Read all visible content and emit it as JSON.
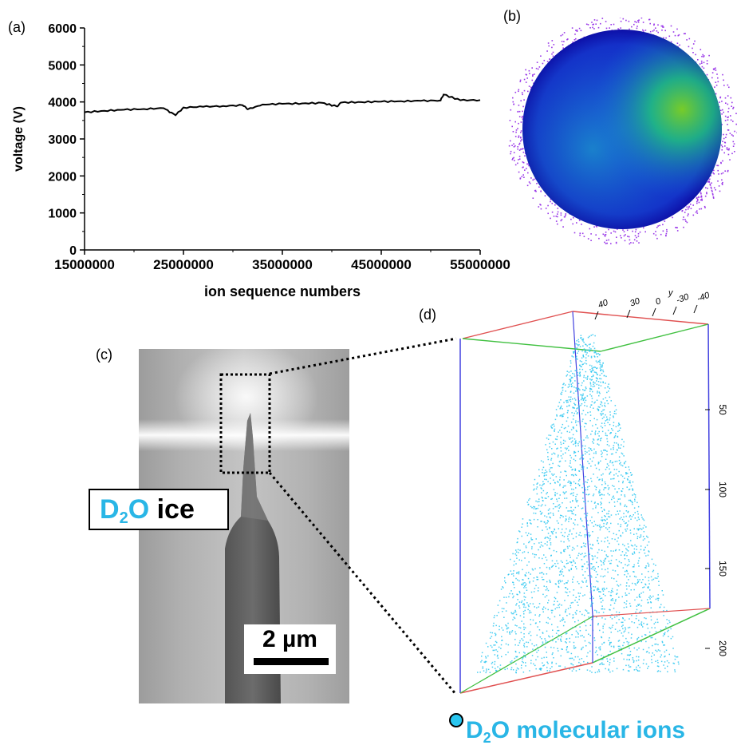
{
  "panels": {
    "a": "(a)",
    "b": "(b)",
    "c": "(c)",
    "d": "(d)"
  },
  "chart_data": {
    "type": "line",
    "xlabel": "ion sequence numbers",
    "ylabel": "voltage (V)",
    "xlim": [
      15000000,
      55000000
    ],
    "ylim": [
      0,
      6000
    ],
    "xticks": [
      "15000000",
      "25000000",
      "35000000",
      "45000000",
      "55000000"
    ],
    "yticks": [
      "0",
      "1000",
      "2000",
      "3000",
      "4000",
      "5000",
      "6000"
    ],
    "series": [
      {
        "x": [
          15000000,
          17000000,
          19000000,
          21000000,
          23000000,
          24200000,
          25000000,
          27000000,
          29000000,
          31000000,
          31500000,
          33000000,
          35000000,
          37000000,
          39000000,
          40500000,
          41000000,
          43000000,
          45000000,
          47000000,
          49000000,
          51000000,
          51300000,
          53000000,
          55000000
        ],
        "values": [
          3720,
          3760,
          3790,
          3810,
          3830,
          3640,
          3850,
          3870,
          3890,
          3910,
          3800,
          3930,
          3950,
          3960,
          3975,
          3880,
          3985,
          3995,
          4010,
          4020,
          4030,
          4040,
          4200,
          4045,
          4050
        ]
      }
    ],
    "grid": false
  },
  "sem": {
    "label": "D",
    "label_sub": "2",
    "label_tail": "O",
    "label_word": "ice",
    "scale": "2 µm"
  },
  "recon": {
    "top_ticks": [
      "40",
      "30",
      "0",
      "-30",
      "-40"
    ],
    "top_axis_letter": "y",
    "side_ticks": [
      "50",
      "100",
      "150",
      "200"
    ],
    "point_color": "#29c6f0",
    "legend_prefix": "D",
    "legend_sub": "2",
    "legend_tail": "O molecular ions"
  }
}
